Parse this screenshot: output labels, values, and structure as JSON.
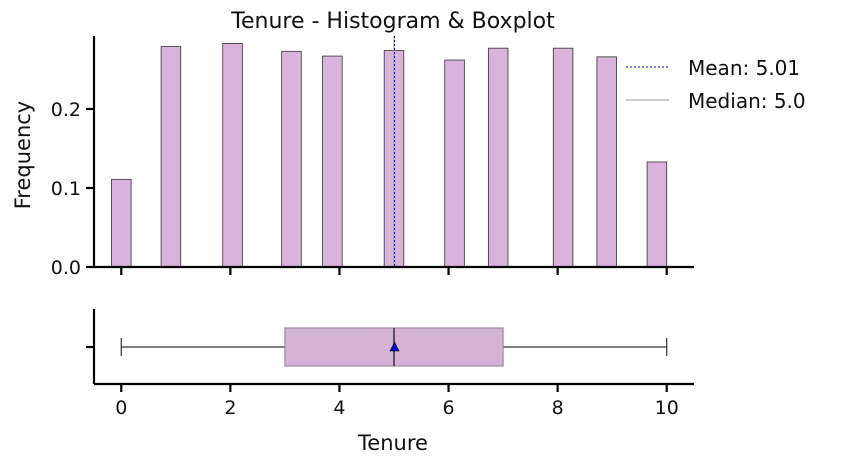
{
  "chart_data": [
    {
      "type": "bar",
      "title": "Tenure - Histogram & Boxplot",
      "xlabel": "",
      "ylabel": "Frequency",
      "xlim": [
        -0.5,
        10.5
      ],
      "ylim": [
        0,
        0.3
      ],
      "yticks": [
        0.0,
        0.1,
        0.2
      ],
      "ytick_labels": [
        "0.0",
        "0.1",
        "0.2"
      ],
      "bar_color": "#d9b3db",
      "bar_edge_color": "#333333",
      "x": [
        0,
        1,
        2,
        3,
        4,
        5,
        6,
        7,
        8,
        9,
        10
      ],
      "values": [
        0.111,
        0.279,
        0.283,
        0.273,
        0.267,
        0.274,
        0.262,
        0.277,
        0.277,
        0.266,
        0.133
      ],
      "grid": false,
      "lines": [
        {
          "label": "Mean: 5.01",
          "x": 5.01,
          "color": "#0000cc",
          "style": "dashed"
        },
        {
          "label": "Median: 5.0",
          "x": 5.0,
          "color": "#999999",
          "style": "solid"
        }
      ],
      "legend_position": "top-right"
    },
    {
      "type": "box",
      "xlabel": "Tenure",
      "xticks": [
        0,
        2,
        4,
        6,
        8,
        10
      ],
      "xtick_labels": [
        "0",
        "2",
        "4",
        "6",
        "8",
        "10"
      ],
      "whisker_low": 0,
      "q1": 3,
      "median": 5,
      "q3": 7,
      "whisker_high": 10,
      "mean": 5.01,
      "box_color": "#d4b3d6",
      "mean_marker_color": "#0000cc"
    }
  ]
}
